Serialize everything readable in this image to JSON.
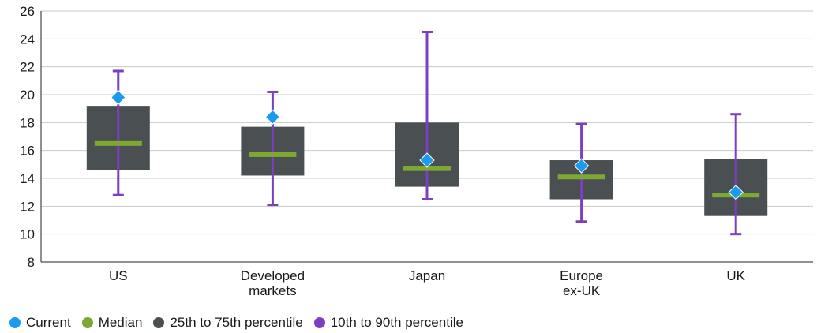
{
  "chart_data": {
    "type": "box",
    "categories": [
      [
        "US"
      ],
      [
        "Developed",
        "markets"
      ],
      [
        "Japan"
      ],
      [
        "Europe",
        "ex-UK"
      ],
      [
        "UK"
      ]
    ],
    "ylim": [
      8,
      26
    ],
    "yticks": [
      8,
      10,
      12,
      14,
      16,
      18,
      20,
      22,
      24,
      26
    ],
    "grid": true,
    "legend_position": "bottom-left",
    "series": [
      {
        "key": "current",
        "name": "Current",
        "color": "#1a9bf0",
        "values": [
          19.8,
          18.4,
          15.3,
          14.9,
          13.0
        ]
      },
      {
        "key": "median",
        "name": "Median",
        "color": "#7da832",
        "values": [
          16.5,
          15.7,
          14.7,
          14.1,
          12.8
        ]
      },
      {
        "key": "iqr",
        "name": "25th to 75th percentile",
        "color": "#4a4f52",
        "low": [
          14.6,
          14.2,
          13.4,
          12.5,
          11.3
        ],
        "high": [
          19.2,
          17.7,
          18.0,
          15.3,
          15.4
        ]
      },
      {
        "key": "p10_90",
        "name": "10th to 90th percentile",
        "color": "#7b3fbf",
        "low": [
          12.8,
          12.1,
          12.5,
          10.9,
          10.0
        ],
        "high": [
          21.7,
          20.2,
          24.5,
          17.9,
          18.6
        ]
      }
    ]
  }
}
